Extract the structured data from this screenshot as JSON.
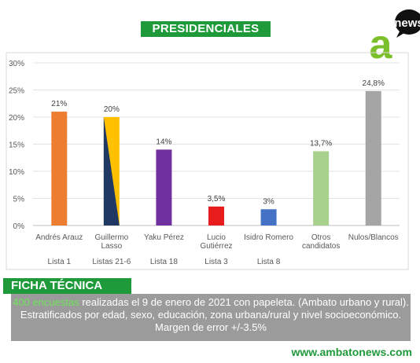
{
  "banner": {
    "title": "PRESIDENCIALES"
  },
  "logo": {
    "letter": "a",
    "word": "news",
    "colors": {
      "green": "#7bbf2a",
      "bubble": "#111111"
    }
  },
  "chart_data": {
    "type": "bar",
    "categories": [
      "Andrés Arauz",
      "Guillermo Lasso",
      "Yaku Pérez",
      "Lucio Gutiérrez",
      "Isidro Romero",
      "Otros candidatos",
      "Nulos/Blancos"
    ],
    "category_lines": [
      [
        "Andrés Arauz"
      ],
      [
        "Guillermo",
        "Lasso"
      ],
      [
        "Yaku Pérez"
      ],
      [
        "Lucio",
        "Gutiérrez"
      ],
      [
        "Isidro Romero"
      ],
      [
        "Otros",
        "candidatos"
      ],
      [
        "Nulos/Blancos"
      ]
    ],
    "lists": [
      "Lista 1",
      "Listas 21-6",
      "Lista 18",
      "Lista 3",
      "Lista 8",
      "",
      ""
    ],
    "values": [
      21,
      20,
      14,
      3.5,
      3,
      13.7,
      24.8
    ],
    "data_labels": [
      "21%",
      "20%",
      "14%",
      "3,5%",
      "3%",
      "13,7%",
      "24,8%"
    ],
    "colors": [
      "#ed7d31",
      "split:#ffc000:#203864",
      "#7030a0",
      "#e81c1c",
      "#4472c4",
      "#a9d18e",
      "#a5a5a5"
    ],
    "yticks": [
      "0%",
      "5%",
      "10%",
      "15%",
      "20%",
      "25%",
      "30%"
    ],
    "ylim": [
      0,
      30
    ],
    "grid": true
  },
  "ficha": {
    "label": "FICHA TÉCNICA",
    "highlight": "400 encuestas",
    "line1_rest": " realizadas el 9 de enero de 2021 con papeleta. (Ambato urbano y rural).",
    "line2": "Estratificados por edad, sexo, educación, zona urbana/rural y nivel socioeconómico.",
    "line3": "Margen de error +/-3.5%"
  },
  "website": "www.ambatonews.com"
}
